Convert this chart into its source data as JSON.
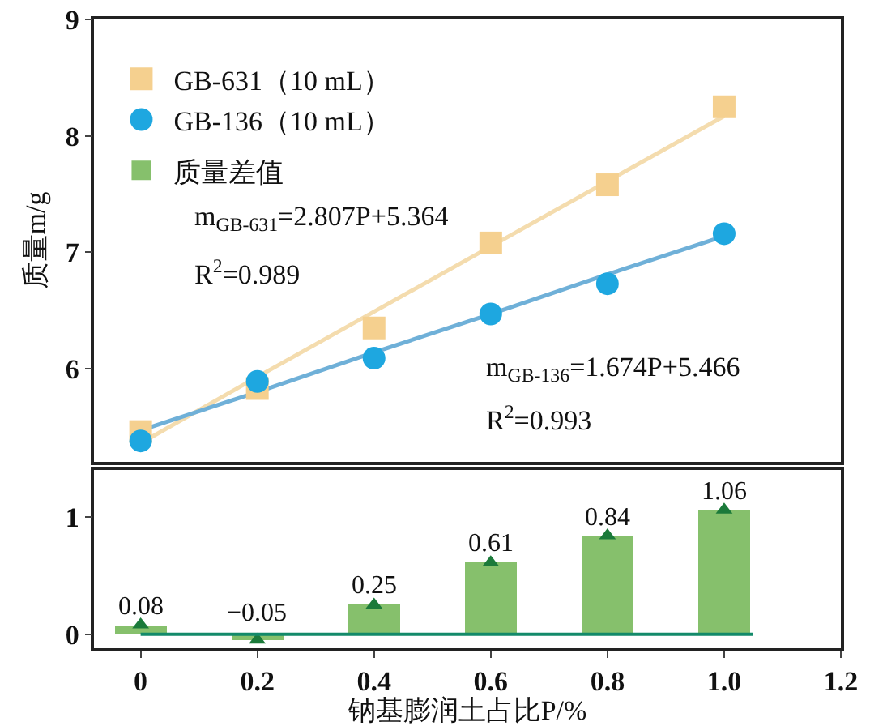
{
  "chart_data": [
    {
      "type": "scatter",
      "ylabel": "质量m/g",
      "xlim": [
        -0.08,
        1.2
      ],
      "ylim": [
        5.2,
        9
      ],
      "yticks": [
        6,
        7,
        8,
        9
      ],
      "tick_labels": "y",
      "grid": false,
      "legend": "top left",
      "x": [
        0,
        0.2,
        0.4,
        0.6,
        0.8,
        1.0
      ],
      "series": [
        {
          "name": "GB-631（10 mL）",
          "color": "#f5d08f",
          "marker": "square",
          "values": [
            5.46,
            5.83,
            6.35,
            7.08,
            7.58,
            8.25
          ]
        },
        {
          "name": "GB-136（10 mL）",
          "color": "#1ea7e0",
          "marker": "circle",
          "values": [
            5.38,
            5.89,
            6.09,
            6.47,
            6.73,
            7.16
          ]
        },
        {
          "type": "line",
          "color": "#f4dcae",
          "values": [
            5.36,
            5.93,
            6.49,
            7.05,
            7.61,
            8.17
          ]
        },
        {
          "type": "line",
          "color": "#6fb0d8",
          "values": [
            5.47,
            5.8,
            6.14,
            6.47,
            6.81,
            7.14
          ]
        }
      ],
      "annotations": [
        "m$_{GB-631}$=2.807P+5.364",
        "R$^{2}$=0.989",
        "m$_{GB-136}$=1.674P+5.466",
        "R$^{2}$=0.993"
      ]
    },
    {
      "type": "bar",
      "xlabel": "钠基膨润土占比P/%",
      "xlim": [
        -0.08,
        1.2
      ],
      "xticks": [
        0,
        0.2,
        0.4,
        0.6,
        0.8,
        {
          "value": 1,
          "label": "1.0"
        },
        1.2
      ],
      "ylim": [
        -0.12,
        1.4
      ],
      "yticks": [
        0,
        1
      ],
      "grid": false,
      "legend": "top left",
      "x": [
        0,
        0.2,
        0.4,
        0.6,
        0.8,
        1.0
      ],
      "series": [
        {
          "name": "质量差值",
          "color": "#86c06c",
          "values": [
            0.08,
            -0.05,
            0.25,
            0.61,
            0.84,
            1.06
          ],
          "value_labels": [
            "0.08",
            "−0.05",
            "0.25",
            "0.61",
            "0.84",
            "1.06"
          ]
        },
        {
          "type": "scatter",
          "marker": "triangle",
          "color": "#1b7a3a",
          "values": [
            0.08,
            -0.05,
            0.25,
            0.61,
            0.84,
            1.06
          ]
        }
      ],
      "ref_lines": [
        {
          "axis": "y",
          "value": 0,
          "color": "#138a6a"
        }
      ]
    }
  ]
}
